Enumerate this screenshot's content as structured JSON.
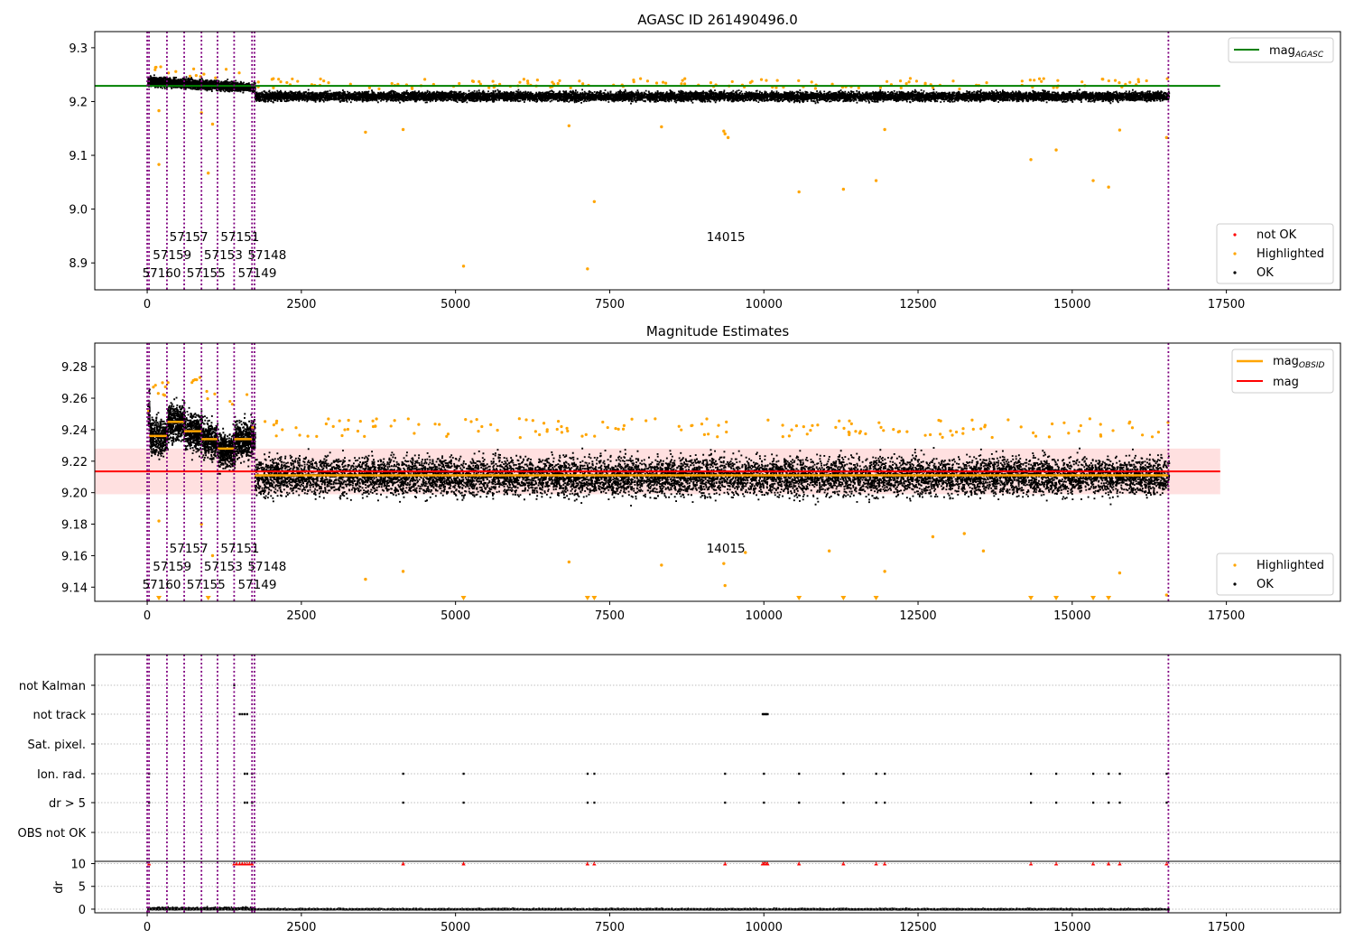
{
  "chart_data": [
    {
      "type": "scatter",
      "title": "AGASC ID 261490496.0",
      "xlabel": "",
      "ylabel": "",
      "xlim": [
        -850,
        19350
      ],
      "ylim": [
        8.85,
        9.33
      ],
      "xticks": [
        0,
        2500,
        5000,
        7500,
        10000,
        12500,
        15000,
        17500
      ],
      "yticks": [
        8.9,
        9.0,
        9.1,
        9.2,
        9.3
      ],
      "ytick_labels": [
        "8.9",
        "9.0",
        "9.1",
        "9.2",
        "9.3"
      ],
      "obs_boundaries": [
        0,
        30,
        320,
        600,
        880,
        1140,
        1410,
        1700,
        1740,
        16560
      ],
      "obsid_labels": [
        {
          "text": "57160",
          "x": 0,
          "row": 0
        },
        {
          "text": "57159",
          "x": 170,
          "row": 1
        },
        {
          "text": "57157",
          "x": 440,
          "row": 2
        },
        {
          "text": "57155",
          "x": 720,
          "row": 0
        },
        {
          "text": "57153",
          "x": 1000,
          "row": 1
        },
        {
          "text": "57151",
          "x": 1270,
          "row": 2
        },
        {
          "text": "57149",
          "x": 1550,
          "row": 0
        },
        {
          "text": "57148",
          "x": 1710,
          "row": 1
        },
        {
          "text": "14015",
          "x": 9150,
          "row": 2
        }
      ],
      "series": [
        {
          "name": "mag$_{AGASC}$",
          "kind": "hline",
          "y": 9.229,
          "color": "#008000",
          "x_range": [
            -850,
            17400
          ]
        },
        {
          "name": "not OK",
          "kind": "points",
          "color": "#ff0000",
          "points": []
        },
        {
          "name": "Highlighted",
          "kind": "points",
          "color": "#ffa500"
        },
        {
          "name": "OK",
          "kind": "points",
          "color": "#000000"
        }
      ],
      "highlighted_points": [
        [
          190,
          9.083
        ],
        [
          190,
          9.183
        ],
        [
          990,
          9.067
        ],
        [
          880,
          9.179
        ],
        [
          1060,
          9.158
        ],
        [
          3540,
          9.143
        ],
        [
          4150,
          9.148
        ],
        [
          5130,
          8.894
        ],
        [
          6840,
          9.155
        ],
        [
          7140,
          8.889
        ],
        [
          7250,
          9.014
        ],
        [
          8340,
          9.153
        ],
        [
          9350,
          9.145
        ],
        [
          9370,
          9.14
        ],
        [
          9420,
          9.133
        ],
        [
          10570,
          9.032
        ],
        [
          11290,
          9.037
        ],
        [
          11820,
          9.053
        ],
        [
          11960,
          9.148
        ],
        [
          14330,
          9.092
        ],
        [
          14740,
          9.11
        ],
        [
          15340,
          9.053
        ],
        [
          15590,
          9.041
        ],
        [
          15770,
          9.147
        ],
        [
          16530,
          9.133
        ]
      ],
      "legend": {
        "location": "right",
        "items": [
          "not OK",
          "Highlighted",
          "OK"
        ]
      }
    },
    {
      "type": "scatter",
      "title": "Magnitude Estimates",
      "xlabel": "",
      "ylabel": "",
      "xlim": [
        -850,
        19350
      ],
      "ylim": [
        9.131,
        9.295
      ],
      "xticks": [
        0,
        2500,
        5000,
        7500,
        10000,
        12500,
        15000,
        17500
      ],
      "yticks": [
        9.14,
        9.16,
        9.18,
        9.2,
        9.22,
        9.24,
        9.26,
        9.28
      ],
      "ytick_labels": [
        "9.14",
        "9.16",
        "9.18",
        "9.20",
        "9.22",
        "9.24",
        "9.26",
        "9.28"
      ],
      "mag": 9.2135,
      "mag_band": [
        9.199,
        9.228
      ],
      "mag_obsid": [
        {
          "x0": 0,
          "x1": 30,
          "y": 9.252
        },
        {
          "x0": 30,
          "x1": 320,
          "y": 9.236
        },
        {
          "x0": 320,
          "x1": 600,
          "y": 9.245
        },
        {
          "x0": 600,
          "x1": 880,
          "y": 9.239
        },
        {
          "x0": 880,
          "x1": 1140,
          "y": 9.234
        },
        {
          "x0": 1140,
          "x1": 1410,
          "y": 9.228
        },
        {
          "x0": 1410,
          "x1": 1700,
          "y": 9.234
        },
        {
          "x0": 1740,
          "x1": 16560,
          "y": 9.211
        }
      ],
      "obsid_labels": [
        {
          "text": "57160",
          "x": 0,
          "row": 0
        },
        {
          "text": "57159",
          "x": 170,
          "row": 1
        },
        {
          "text": "57157",
          "x": 440,
          "row": 2
        },
        {
          "text": "57155",
          "x": 720,
          "row": 0
        },
        {
          "text": "57153",
          "x": 1000,
          "row": 1
        },
        {
          "text": "57151",
          "x": 1270,
          "row": 2
        },
        {
          "text": "57149",
          "x": 1550,
          "row": 0
        },
        {
          "text": "57148",
          "x": 1710,
          "row": 1
        },
        {
          "text": "14015",
          "x": 9150,
          "row": 2
        }
      ],
      "series": [
        {
          "name": "mag$_{OBSID}$",
          "kind": "steps",
          "color": "#ffa500"
        },
        {
          "name": "mag",
          "kind": "hline",
          "color": "#ff0000"
        },
        {
          "name": "Highlighted",
          "kind": "points",
          "color": "#ffa500"
        },
        {
          "name": "OK",
          "kind": "points",
          "color": "#000000"
        }
      ],
      "highlighted_points": [
        [
          190,
          9.182
        ],
        [
          880,
          9.18
        ],
        [
          1060,
          9.16
        ],
        [
          3540,
          9.145
        ],
        [
          4150,
          9.15
        ],
        [
          6840,
          9.156
        ],
        [
          8340,
          9.154
        ],
        [
          9350,
          9.155
        ],
        [
          9370,
          9.141
        ],
        [
          9700,
          9.162
        ],
        [
          11060,
          9.163
        ],
        [
          11960,
          9.15
        ],
        [
          12740,
          9.172
        ],
        [
          13250,
          9.174
        ],
        [
          13560,
          9.163
        ],
        [
          15770,
          9.149
        ],
        [
          16530,
          9.135
        ]
      ],
      "offscale_markers": [
        190,
        990,
        5130,
        7140,
        7250,
        10570,
        11290,
        11820,
        14330,
        14740,
        15340,
        15590
      ],
      "legend": {
        "location": "right",
        "items": [
          "Highlighted",
          "OK"
        ]
      }
    },
    {
      "type": "scatter",
      "title": "",
      "xlabel": "",
      "ylabel": "",
      "xlim": [
        -850,
        19350
      ],
      "xticks": [
        0,
        2500,
        5000,
        7500,
        10000,
        12500,
        15000,
        17500
      ],
      "flag_rows": [
        "not Kalman",
        "not track",
        "Sat. pixel.",
        "Ion. rad.",
        "dr > 5",
        "OBS not OK"
      ],
      "flags": {
        "not Kalman": [
          1410
        ],
        "not track": [
          1500,
          1540,
          1580,
          1620,
          9980,
          10000,
          10020,
          10040,
          10060
        ],
        "Sat. pixel.": [],
        "Ion. rad.": [
          30,
          1580,
          1620,
          1700,
          4150,
          5130,
          7140,
          7250,
          9370,
          10000,
          10570,
          11290,
          11820,
          11960,
          14330,
          14740,
          15340,
          15590,
          15770,
          16530
        ],
        "dr > 5": [
          30,
          1580,
          1620,
          1700,
          4150,
          5130,
          7140,
          7250,
          9370,
          10000,
          10570,
          11290,
          11820,
          11960,
          14330,
          14740,
          15340,
          15590,
          15770,
          16530
        ],
        "OBS not OK": []
      },
      "dr_ylabel": "dr",
      "dr_yticks": [
        0,
        5,
        10
      ],
      "dr_ylim": [
        -0.8,
        10.5
      ],
      "dr_flagged_x": [
        30,
        1410,
        1450,
        1500,
        1540,
        1580,
        1620,
        1660,
        1700,
        4150,
        5130,
        7140,
        7250,
        9370,
        9980,
        10000,
        10020,
        10040,
        10060,
        10570,
        11290,
        11820,
        11960,
        14330,
        14740,
        15340,
        15590,
        15770,
        16530
      ],
      "dr_flag_color": "#ff0000"
    }
  ]
}
